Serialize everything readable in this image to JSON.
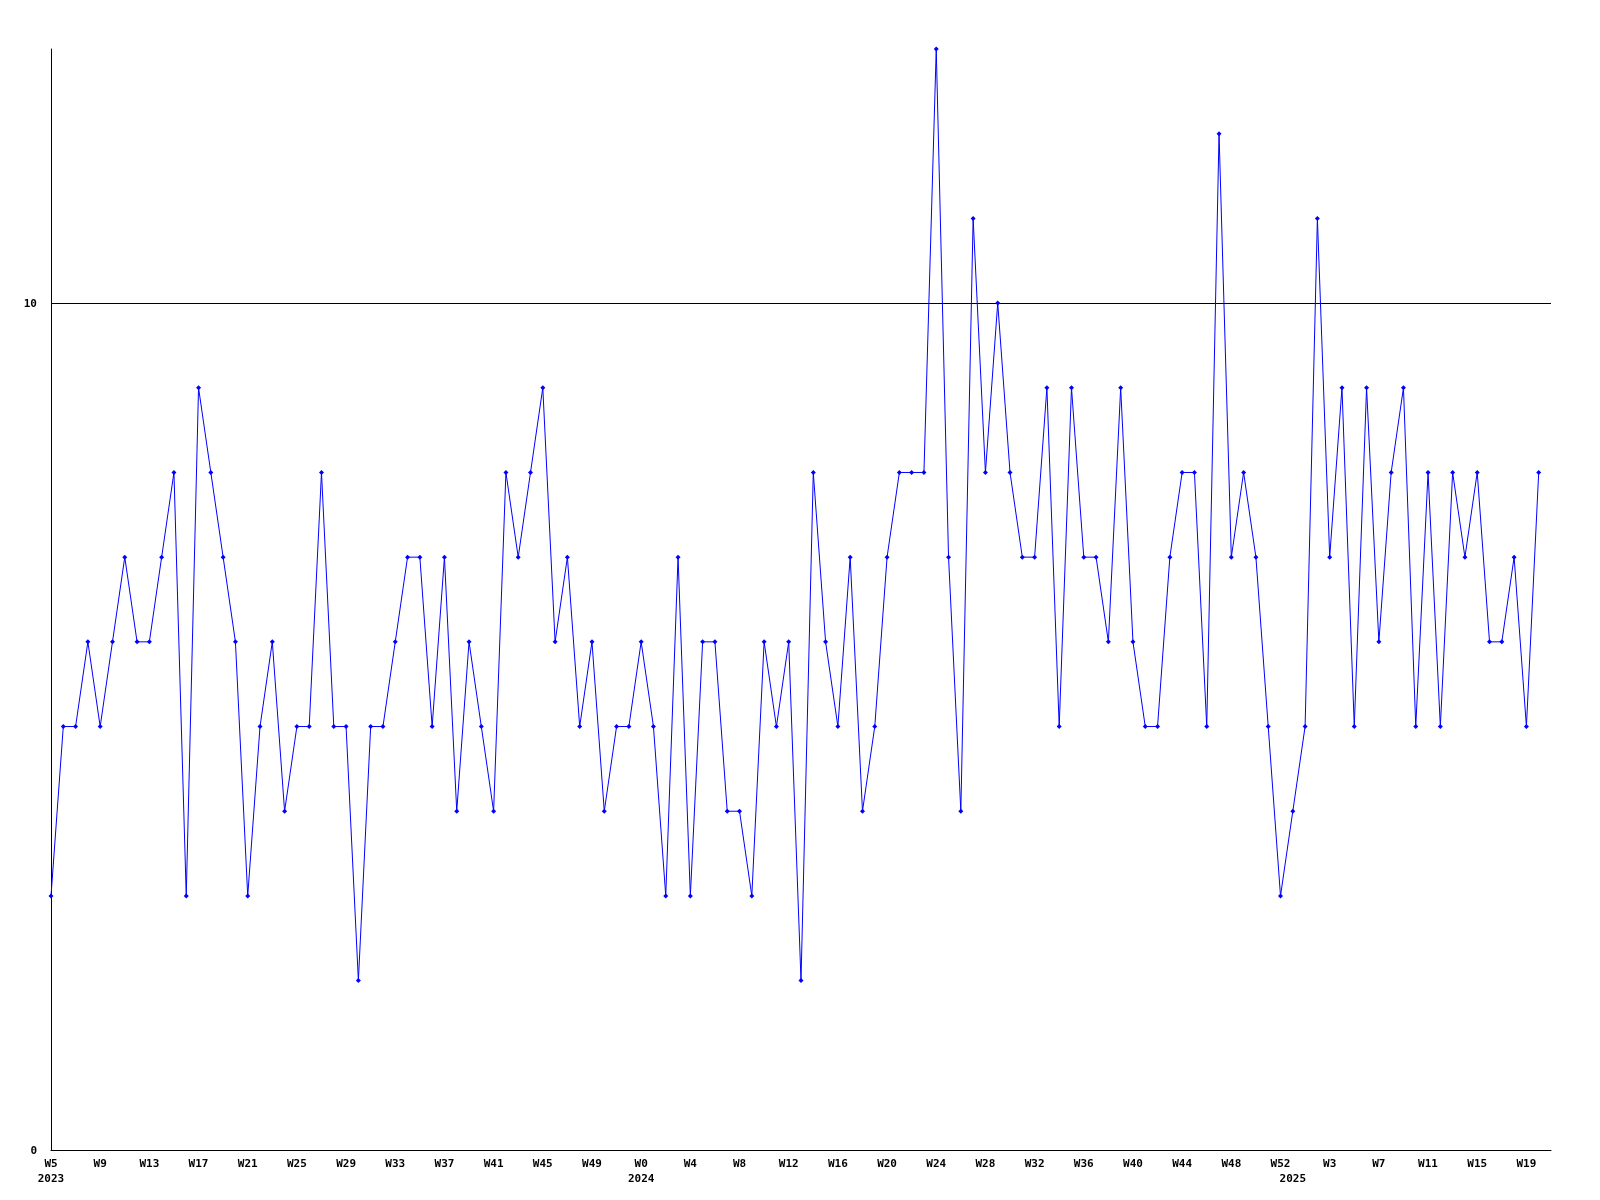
{
  "chart_data": {
    "type": "line",
    "categories": [
      "W5\n2023",
      null,
      null,
      null,
      "W9",
      null,
      null,
      null,
      "W13",
      null,
      null,
      null,
      "W17",
      null,
      null,
      null,
      "W21",
      null,
      null,
      null,
      "W25",
      null,
      null,
      null,
      "W29",
      null,
      null,
      null,
      "W33",
      null,
      null,
      null,
      "W37",
      null,
      null,
      null,
      "W41",
      null,
      null,
      null,
      "W45",
      null,
      null,
      null,
      "W49",
      null,
      null,
      null,
      "W0\n2024",
      null,
      null,
      null,
      "W4",
      null,
      null,
      null,
      "W8",
      null,
      null,
      null,
      "W12",
      null,
      null,
      null,
      "W16",
      null,
      null,
      null,
      "W20",
      null,
      null,
      null,
      "W24",
      null,
      null,
      null,
      "W28",
      null,
      null,
      null,
      "W32",
      null,
      null,
      null,
      "W36",
      null,
      null,
      null,
      "W40",
      null,
      null,
      null,
      "W44",
      null,
      null,
      null,
      "W48",
      null,
      null,
      null,
      "W52",
      "\n2025",
      null,
      null,
      "W3",
      null,
      null,
      null,
      "W7",
      null,
      null,
      null,
      "W11",
      null,
      null,
      null,
      "W15",
      null,
      null,
      null,
      "W19",
      null,
      null
    ],
    "series": [
      {
        "color": "#0000ff",
        "values": [
          3,
          5,
          5,
          6,
          5,
          6,
          7,
          6,
          6,
          7,
          8,
          3,
          9,
          8,
          7,
          6,
          3,
          5,
          6,
          4,
          5,
          5,
          8,
          5,
          5,
          2,
          5,
          5,
          6,
          7,
          7,
          5,
          7,
          4,
          6,
          5,
          4,
          8,
          7,
          8,
          9,
          6,
          7,
          5,
          6,
          4,
          5,
          5,
          6,
          5,
          3,
          7,
          3,
          6,
          6,
          4,
          4,
          3,
          6,
          5,
          6,
          2,
          8,
          6,
          5,
          7,
          4,
          5,
          7,
          8,
          8,
          8,
          13,
          7,
          4,
          11,
          8,
          10,
          8,
          7,
          7,
          9,
          5,
          9,
          7,
          7,
          6,
          9,
          6,
          5,
          5,
          7,
          8,
          8,
          5,
          12,
          7,
          8,
          7,
          5,
          3,
          4,
          5,
          11,
          7,
          9,
          5,
          9,
          6,
          8,
          9,
          5,
          8,
          5,
          8,
          7,
          8,
          6,
          6,
          7,
          5,
          8,
          null
        ]
      }
    ],
    "ylim": [
      0,
      13
    ],
    "yticks": [
      0,
      10
    ],
    "grid": "y",
    "marker": "diamond",
    "line_style": "solid"
  }
}
